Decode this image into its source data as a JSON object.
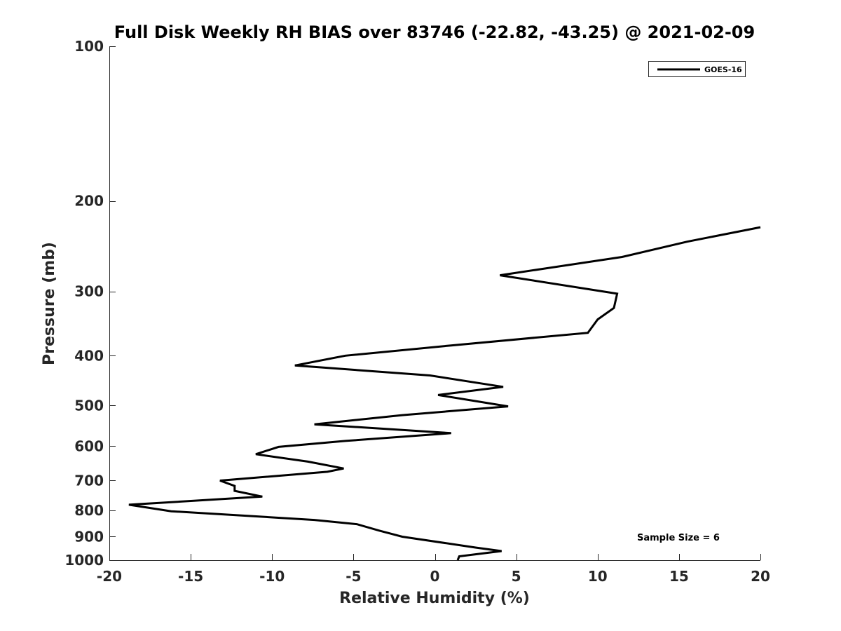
{
  "chart_data": {
    "type": "line",
    "title": "Full Disk Weekly RH BIAS over 83746 (-22.82, -43.25) @ 2021-02-09",
    "xlabel": "Relative Humidity (%)",
    "ylabel": "Pressure (mb)",
    "xlim": [
      -20,
      20
    ],
    "ylim": [
      100,
      1000
    ],
    "y_scale": "log",
    "y_reversed": true,
    "x_ticks": [
      -20,
      -15,
      -10,
      -5,
      0,
      5,
      10,
      15,
      20
    ],
    "x_tick_labels": [
      "-20",
      "-15",
      "-10",
      "-5",
      "0",
      "5",
      "10",
      "15",
      "20"
    ],
    "y_ticks": [
      100,
      200,
      300,
      400,
      500,
      600,
      700,
      800,
      900,
      1000
    ],
    "y_tick_labels": [
      "100",
      "200",
      "300",
      "400",
      "500",
      "600",
      "700",
      "800",
      "900",
      "1000"
    ],
    "grid": false,
    "legend": {
      "placement": "top-right",
      "entries": [
        "GOES-16"
      ]
    },
    "annotation": "Sample Size = 6",
    "series": [
      {
        "name": "GOES-16",
        "color": "#000000",
        "points": [
          {
            "x": 20.0,
            "p": 225
          },
          {
            "x": 15.5,
            "p": 240
          },
          {
            "x": 11.5,
            "p": 257
          },
          {
            "x": 4.0,
            "p": 279
          },
          {
            "x": 11.2,
            "p": 303
          },
          {
            "x": 11.0,
            "p": 323
          },
          {
            "x": 10.0,
            "p": 340
          },
          {
            "x": 9.4,
            "p": 361
          },
          {
            "x": 1.0,
            "p": 382
          },
          {
            "x": -5.5,
            "p": 400
          },
          {
            "x": -8.6,
            "p": 418
          },
          {
            "x": -0.3,
            "p": 437
          },
          {
            "x": 4.2,
            "p": 460
          },
          {
            "x": 0.2,
            "p": 477
          },
          {
            "x": 4.5,
            "p": 502
          },
          {
            "x": -2.0,
            "p": 522
          },
          {
            "x": -7.4,
            "p": 544
          },
          {
            "x": 1.0,
            "p": 566
          },
          {
            "x": -5.5,
            "p": 586
          },
          {
            "x": -9.6,
            "p": 602
          },
          {
            "x": -11.0,
            "p": 622
          },
          {
            "x": -7.8,
            "p": 643
          },
          {
            "x": -5.6,
            "p": 663
          },
          {
            "x": -6.6,
            "p": 673
          },
          {
            "x": -13.2,
            "p": 700
          },
          {
            "x": -12.3,
            "p": 717
          },
          {
            "x": -12.3,
            "p": 733
          },
          {
            "x": -10.6,
            "p": 752
          },
          {
            "x": -18.8,
            "p": 780
          },
          {
            "x": -16.2,
            "p": 803
          },
          {
            "x": -7.4,
            "p": 835
          },
          {
            "x": -4.8,
            "p": 851
          },
          {
            "x": -3.4,
            "p": 876
          },
          {
            "x": -2.0,
            "p": 900
          },
          {
            "x": 2.5,
            "p": 945
          },
          {
            "x": 4.1,
            "p": 960
          },
          {
            "x": 1.5,
            "p": 983
          },
          {
            "x": 1.4,
            "p": 1000
          }
        ]
      }
    ]
  }
}
